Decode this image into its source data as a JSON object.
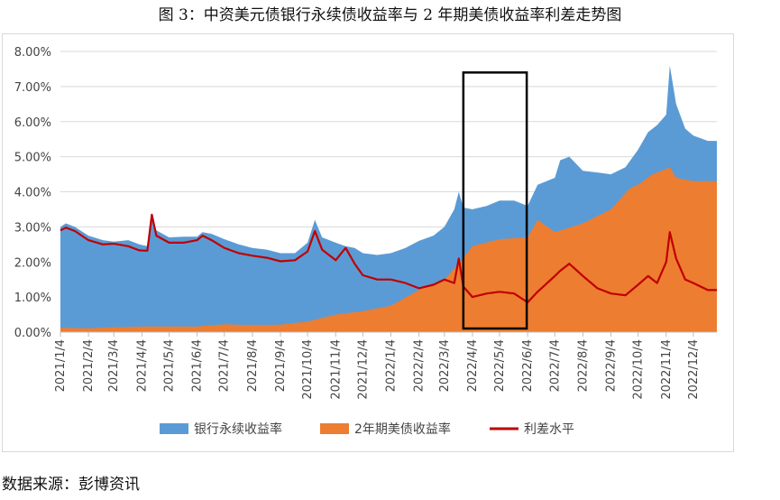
{
  "title": "图 3：中资美元债银行永续债收益率与 2 年期美债收益率利差走势图",
  "source": "数据来源：彭博资讯",
  "colors": {
    "bank": "#5b9bd5",
    "ust": "#ed7d31",
    "spread": "#c00000",
    "box": "#000000"
  },
  "chart_data": {
    "type": "area",
    "title": "",
    "xlabel": "",
    "ylabel": "",
    "ylim": [
      0,
      0.08
    ],
    "y_ticks": [
      "0.00%",
      "1.00%",
      "2.00%",
      "3.00%",
      "4.00%",
      "5.00%",
      "6.00%",
      "7.00%",
      "8.00%"
    ],
    "x_ticks": [
      "2021/1/4",
      "2021/2/4",
      "2021/3/4",
      "2021/4/4",
      "2021/5/4",
      "2021/6/4",
      "2021/7/4",
      "2021/8/4",
      "2021/9/4",
      "2021/10/4",
      "2021/11/4",
      "2021/12/4",
      "2022/1/4",
      "2022/2/4",
      "2022/3/4",
      "2022/4/4",
      "2022/5/4",
      "2022/6/4",
      "2022/7/4",
      "2022/8/4",
      "2022/9/4",
      "2022/10/4",
      "2022/11/4",
      "2022/12/4"
    ],
    "x_range": [
      "2021/1/4",
      "2022/12/30"
    ],
    "gridlines": true,
    "legend_position": "bottom",
    "highlight_box": {
      "x_start": "2022/3/25",
      "x_end": "2022/6/3",
      "y_top": 0.074
    },
    "series": [
      {
        "name": "银行永续收益率",
        "style": "area",
        "points": [
          [
            "2021/1/4",
            0.03
          ],
          [
            "2021/1/10",
            0.031
          ],
          [
            "2021/1/20",
            0.03
          ],
          [
            "2021/2/4",
            0.0275
          ],
          [
            "2021/2/20",
            0.0262
          ],
          [
            "2021/3/4",
            0.0258
          ],
          [
            "2021/3/20",
            0.0262
          ],
          [
            "2021/4/1",
            0.025
          ],
          [
            "2021/4/10",
            0.0245
          ],
          [
            "2021/4/15",
            0.033
          ],
          [
            "2021/4/20",
            0.029
          ],
          [
            "2021/5/4",
            0.027
          ],
          [
            "2021/5/20",
            0.0272
          ],
          [
            "2021/6/4",
            0.0272
          ],
          [
            "2021/6/10",
            0.0285
          ],
          [
            "2021/6/20",
            0.028
          ],
          [
            "2021/7/4",
            0.0265
          ],
          [
            "2021/7/20",
            0.025
          ],
          [
            "2021/8/4",
            0.024
          ],
          [
            "2021/8/20",
            0.0235
          ],
          [
            "2021/9/4",
            0.0225
          ],
          [
            "2021/9/20",
            0.0225
          ],
          [
            "2021/10/4",
            0.0255
          ],
          [
            "2021/10/12",
            0.032
          ],
          [
            "2021/10/20",
            0.027
          ],
          [
            "2021/11/4",
            0.0255
          ],
          [
            "2021/11/15",
            0.0245
          ],
          [
            "2021/11/25",
            0.024
          ],
          [
            "2021/12/4",
            0.0225
          ],
          [
            "2021/12/20",
            0.022
          ],
          [
            "2022/1/4",
            0.0225
          ],
          [
            "2022/1/20",
            0.024
          ],
          [
            "2022/2/4",
            0.026
          ],
          [
            "2022/2/20",
            0.0275
          ],
          [
            "2022/3/4",
            0.03
          ],
          [
            "2022/3/15",
            0.035
          ],
          [
            "2022/3/20",
            0.04
          ],
          [
            "2022/3/25",
            0.0355
          ],
          [
            "2022/4/4",
            0.035
          ],
          [
            "2022/4/20",
            0.036
          ],
          [
            "2022/5/4",
            0.0375
          ],
          [
            "2022/5/20",
            0.0375
          ],
          [
            "2022/6/4",
            0.036
          ],
          [
            "2022/6/15",
            0.042
          ],
          [
            "2022/7/4",
            0.044
          ],
          [
            "2022/7/10",
            0.049
          ],
          [
            "2022/7/20",
            0.05
          ],
          [
            "2022/8/4",
            0.046
          ],
          [
            "2022/8/20",
            0.0455
          ],
          [
            "2022/9/4",
            0.045
          ],
          [
            "2022/9/20",
            0.047
          ],
          [
            "2022/10/4",
            0.052
          ],
          [
            "2022/10/15",
            0.057
          ],
          [
            "2022/10/25",
            0.059
          ],
          [
            "2022/11/4",
            0.062
          ],
          [
            "2022/11/8",
            0.076
          ],
          [
            "2022/11/15",
            0.065
          ],
          [
            "2022/11/25",
            0.058
          ],
          [
            "2022/12/4",
            0.056
          ],
          [
            "2022/12/20",
            0.0545
          ],
          [
            "2022/12/30",
            0.0545
          ]
        ]
      },
      {
        "name": "2年期美债收益率",
        "style": "area",
        "points": [
          [
            "2021/1/4",
            0.0012
          ],
          [
            "2021/2/4",
            0.0011
          ],
          [
            "2021/3/4",
            0.0014
          ],
          [
            "2021/4/4",
            0.0016
          ],
          [
            "2021/5/4",
            0.0016
          ],
          [
            "2021/6/4",
            0.0016
          ],
          [
            "2021/7/4",
            0.0022
          ],
          [
            "2021/8/4",
            0.002
          ],
          [
            "2021/9/4",
            0.0021
          ],
          [
            "2021/10/4",
            0.003
          ],
          [
            "2021/11/4",
            0.005
          ],
          [
            "2021/12/4",
            0.006
          ],
          [
            "2022/1/4",
            0.0075
          ],
          [
            "2022/2/4",
            0.012
          ],
          [
            "2022/3/4",
            0.015
          ],
          [
            "2022/3/20",
            0.0195
          ],
          [
            "2022/4/4",
            0.0245
          ],
          [
            "2022/5/4",
            0.0265
          ],
          [
            "2022/6/4",
            0.027
          ],
          [
            "2022/6/15",
            0.032
          ],
          [
            "2022/7/4",
            0.0285
          ],
          [
            "2022/8/4",
            0.031
          ],
          [
            "2022/9/4",
            0.035
          ],
          [
            "2022/9/25",
            0.041
          ],
          [
            "2022/10/4",
            0.042
          ],
          [
            "2022/10/20",
            0.045
          ],
          [
            "2022/11/4",
            0.0465
          ],
          [
            "2022/11/8",
            0.047
          ],
          [
            "2022/11/15",
            0.044
          ],
          [
            "2022/12/4",
            0.043
          ],
          [
            "2022/12/30",
            0.043
          ]
        ]
      },
      {
        "name": "利差水平",
        "style": "line",
        "points": [
          [
            "2021/1/4",
            0.029
          ],
          [
            "2021/1/10",
            0.0298
          ],
          [
            "2021/1/20",
            0.0288
          ],
          [
            "2021/2/4",
            0.0262
          ],
          [
            "2021/2/20",
            0.025
          ],
          [
            "2021/3/4",
            0.0252
          ],
          [
            "2021/3/20",
            0.0245
          ],
          [
            "2021/4/1",
            0.0233
          ],
          [
            "2021/4/10",
            0.0232
          ],
          [
            "2021/4/15",
            0.0335
          ],
          [
            "2021/4/20",
            0.0275
          ],
          [
            "2021/5/4",
            0.0255
          ],
          [
            "2021/5/20",
            0.0255
          ],
          [
            "2021/6/4",
            0.0262
          ],
          [
            "2021/6/10",
            0.0275
          ],
          [
            "2021/6/20",
            0.0262
          ],
          [
            "2021/7/4",
            0.024
          ],
          [
            "2021/7/20",
            0.0225
          ],
          [
            "2021/8/4",
            0.0218
          ],
          [
            "2021/8/20",
            0.0212
          ],
          [
            "2021/9/4",
            0.0202
          ],
          [
            "2021/9/20",
            0.0205
          ],
          [
            "2021/10/4",
            0.023
          ],
          [
            "2021/10/12",
            0.0288
          ],
          [
            "2021/10/20",
            0.0235
          ],
          [
            "2021/11/4",
            0.0205
          ],
          [
            "2021/11/15",
            0.024
          ],
          [
            "2021/11/25",
            0.0195
          ],
          [
            "2021/12/4",
            0.0162
          ],
          [
            "2021/12/20",
            0.015
          ],
          [
            "2022/1/4",
            0.015
          ],
          [
            "2022/1/20",
            0.014
          ],
          [
            "2022/2/4",
            0.0125
          ],
          [
            "2022/2/20",
            0.0135
          ],
          [
            "2022/3/4",
            0.015
          ],
          [
            "2022/3/15",
            0.014
          ],
          [
            "2022/3/20",
            0.021
          ],
          [
            "2022/3/25",
            0.013
          ],
          [
            "2022/4/4",
            0.01
          ],
          [
            "2022/4/20",
            0.011
          ],
          [
            "2022/5/4",
            0.0115
          ],
          [
            "2022/5/20",
            0.011
          ],
          [
            "2022/6/4",
            0.0085
          ],
          [
            "2022/6/15",
            0.0115
          ],
          [
            "2022/7/4",
            0.016
          ],
          [
            "2022/7/10",
            0.0175
          ],
          [
            "2022/7/20",
            0.0195
          ],
          [
            "2022/8/4",
            0.016
          ],
          [
            "2022/8/20",
            0.0125
          ],
          [
            "2022/9/4",
            0.011
          ],
          [
            "2022/9/20",
            0.0105
          ],
          [
            "2022/10/4",
            0.0135
          ],
          [
            "2022/10/15",
            0.016
          ],
          [
            "2022/10/25",
            0.014
          ],
          [
            "2022/11/4",
            0.02
          ],
          [
            "2022/11/8",
            0.0285
          ],
          [
            "2022/11/15",
            0.021
          ],
          [
            "2022/11/25",
            0.015
          ],
          [
            "2022/12/4",
            0.014
          ],
          [
            "2022/12/20",
            0.012
          ],
          [
            "2022/12/30",
            0.012
          ]
        ]
      }
    ]
  }
}
